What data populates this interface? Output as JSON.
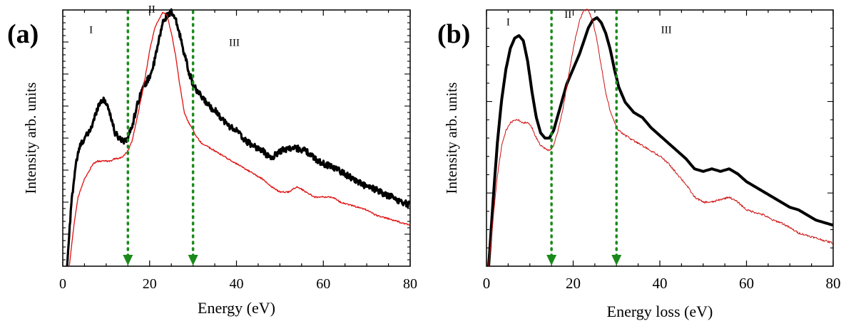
{
  "chart_data": [
    {
      "type": "line",
      "panel_label": "(a)",
      "xlabel": "Energy (eV)",
      "ylabel": "Intensity arb. units",
      "xlim": [
        0,
        80
      ],
      "ylim": [
        0,
        1
      ],
      "xticks": [
        0,
        20,
        40,
        60,
        80
      ],
      "y_tick_labels": "none",
      "grid": false,
      "legend": "none",
      "region_labels": [
        {
          "text": "I",
          "x": 6.5,
          "y": 0.91
        },
        {
          "text": "II",
          "x": 20.5,
          "y": 0.99
        },
        {
          "text": "III",
          "x": 39.5,
          "y": 0.86
        }
      ],
      "markers": [
        {
          "x": 15,
          "color": "#1a8a1a",
          "style": "dotted",
          "arrow": true
        },
        {
          "x": 30,
          "color": "#1a8a1a",
          "style": "dotted",
          "arrow": true
        }
      ],
      "series": [
        {
          "color": "#000000",
          "width": 3.2,
          "noise": 0.012,
          "x": [
            1.0,
            2,
            3,
            4,
            5,
            6,
            7,
            8,
            9,
            10,
            11,
            12,
            13,
            14,
            15,
            16,
            17,
            18,
            19,
            20,
            21,
            22,
            23,
            24,
            25,
            26,
            27,
            28,
            29,
            30,
            31,
            32,
            33,
            34,
            35,
            36,
            38,
            40,
            42,
            44,
            46,
            48,
            50,
            52,
            54,
            56,
            58,
            60,
            62,
            64,
            66,
            68,
            70,
            72,
            74,
            76,
            78,
            80
          ],
          "y": [
            0.0,
            0.25,
            0.4,
            0.47,
            0.5,
            0.52,
            0.56,
            0.62,
            0.65,
            0.64,
            0.59,
            0.52,
            0.5,
            0.49,
            0.5,
            0.55,
            0.62,
            0.68,
            0.71,
            0.74,
            0.79,
            0.87,
            0.95,
            0.98,
            0.99,
            0.96,
            0.9,
            0.83,
            0.76,
            0.71,
            0.68,
            0.66,
            0.64,
            0.62,
            0.61,
            0.59,
            0.55,
            0.53,
            0.49,
            0.47,
            0.45,
            0.42,
            0.45,
            0.46,
            0.46,
            0.45,
            0.42,
            0.4,
            0.39,
            0.37,
            0.35,
            0.33,
            0.31,
            0.3,
            0.28,
            0.27,
            0.25,
            0.24
          ]
        },
        {
          "color": "#e01010",
          "width": 1.3,
          "noise": 0.003,
          "x": [
            1.5,
            2.5,
            3.5,
            5,
            6,
            7,
            8,
            9,
            10,
            11,
            12,
            13,
            14,
            15,
            16,
            17,
            18,
            19,
            20,
            21,
            22,
            23,
            24,
            25,
            26,
            27,
            28,
            29,
            30,
            31,
            32,
            33,
            34,
            35,
            36,
            38,
            40,
            42,
            44,
            46,
            48,
            50,
            52,
            54,
            56,
            58,
            60,
            62,
            64,
            66,
            68,
            70,
            72,
            74,
            76,
            78,
            80
          ],
          "y": [
            0.0,
            0.15,
            0.27,
            0.34,
            0.37,
            0.4,
            0.41,
            0.41,
            0.41,
            0.41,
            0.42,
            0.42,
            0.43,
            0.45,
            0.49,
            0.57,
            0.65,
            0.74,
            0.84,
            0.92,
            0.96,
            0.99,
            0.98,
            0.91,
            0.82,
            0.7,
            0.6,
            0.56,
            0.53,
            0.5,
            0.48,
            0.47,
            0.46,
            0.45,
            0.44,
            0.42,
            0.4,
            0.38,
            0.36,
            0.34,
            0.31,
            0.29,
            0.29,
            0.31,
            0.29,
            0.27,
            0.27,
            0.27,
            0.25,
            0.24,
            0.23,
            0.22,
            0.2,
            0.19,
            0.18,
            0.17,
            0.16
          ]
        }
      ]
    },
    {
      "type": "line",
      "panel_label": "(b)",
      "xlabel": "Energy loss (eV)",
      "ylabel": "Intensity arb. units",
      "xlim": [
        0,
        80
      ],
      "ylim": [
        0,
        1
      ],
      "xticks": [
        0,
        20,
        40,
        60,
        80
      ],
      "y_tick_labels": "none",
      "grid": false,
      "legend": "none",
      "region_labels": [
        {
          "text": "I",
          "x": 5,
          "y": 0.94
        },
        {
          "text": "II",
          "x": 18.8,
          "y": 0.97
        },
        {
          "text": "III",
          "x": 41.5,
          "y": 0.91
        }
      ],
      "markers": [
        {
          "x": 15,
          "color": "#1a8a1a",
          "style": "dotted",
          "arrow": true
        },
        {
          "x": 30,
          "color": "#1a8a1a",
          "style": "dotted",
          "arrow": true
        }
      ],
      "series": [
        {
          "color": "#000000",
          "width": 4,
          "noise": 0,
          "x": [
            0.5,
            1.5,
            2.5,
            3.5,
            4.5,
            5.5,
            6.5,
            7.5,
            8.5,
            9.5,
            10.5,
            11.5,
            12.5,
            13.5,
            14.5,
            15.5,
            16.5,
            17.5,
            18.5,
            19.5,
            20.5,
            21.5,
            22.5,
            23.5,
            24.5,
            25.5,
            26.5,
            27.5,
            28.5,
            29.5,
            30.5,
            32,
            34,
            36,
            38,
            40,
            42,
            44,
            46,
            48,
            50,
            52,
            54,
            56,
            58,
            60,
            62,
            64,
            66,
            68,
            70,
            72,
            74,
            76,
            78,
            80
          ],
          "y": [
            0.0,
            0.25,
            0.48,
            0.65,
            0.77,
            0.85,
            0.89,
            0.9,
            0.88,
            0.8,
            0.68,
            0.58,
            0.52,
            0.5,
            0.5,
            0.53,
            0.59,
            0.65,
            0.71,
            0.75,
            0.79,
            0.83,
            0.88,
            0.93,
            0.96,
            0.97,
            0.95,
            0.91,
            0.85,
            0.77,
            0.7,
            0.64,
            0.6,
            0.58,
            0.54,
            0.51,
            0.48,
            0.45,
            0.42,
            0.38,
            0.37,
            0.38,
            0.37,
            0.38,
            0.36,
            0.33,
            0.31,
            0.29,
            0.27,
            0.25,
            0.23,
            0.22,
            0.2,
            0.18,
            0.17,
            0.16
          ]
        },
        {
          "color": "#cc1111",
          "width": 1,
          "noise": 0.004,
          "x": [
            0.5,
            1.5,
            2.5,
            3.5,
            4.5,
            5.5,
            6.5,
            7.5,
            8.5,
            9.5,
            10.5,
            11.5,
            12.5,
            13.5,
            14.5,
            15.5,
            16.5,
            17.5,
            18.5,
            19.5,
            20.5,
            21.5,
            22.5,
            23.5,
            24.5,
            25.5,
            26.5,
            27.5,
            28.5,
            29.5,
            30.5,
            32,
            34,
            36,
            38,
            40,
            42,
            44,
            46,
            48,
            50,
            52,
            54,
            56,
            58,
            60,
            62,
            64,
            66,
            68,
            70,
            72,
            74,
            76,
            78,
            80
          ],
          "y": [
            0.0,
            0.18,
            0.35,
            0.47,
            0.53,
            0.56,
            0.57,
            0.57,
            0.56,
            0.56,
            0.54,
            0.5,
            0.47,
            0.46,
            0.45,
            0.47,
            0.53,
            0.6,
            0.7,
            0.8,
            0.89,
            0.96,
            1.0,
            1.0,
            0.96,
            0.88,
            0.78,
            0.68,
            0.61,
            0.56,
            0.53,
            0.51,
            0.49,
            0.47,
            0.45,
            0.43,
            0.4,
            0.36,
            0.32,
            0.27,
            0.25,
            0.25,
            0.26,
            0.27,
            0.25,
            0.22,
            0.21,
            0.2,
            0.18,
            0.17,
            0.15,
            0.13,
            0.12,
            0.11,
            0.1,
            0.09
          ]
        }
      ]
    }
  ]
}
